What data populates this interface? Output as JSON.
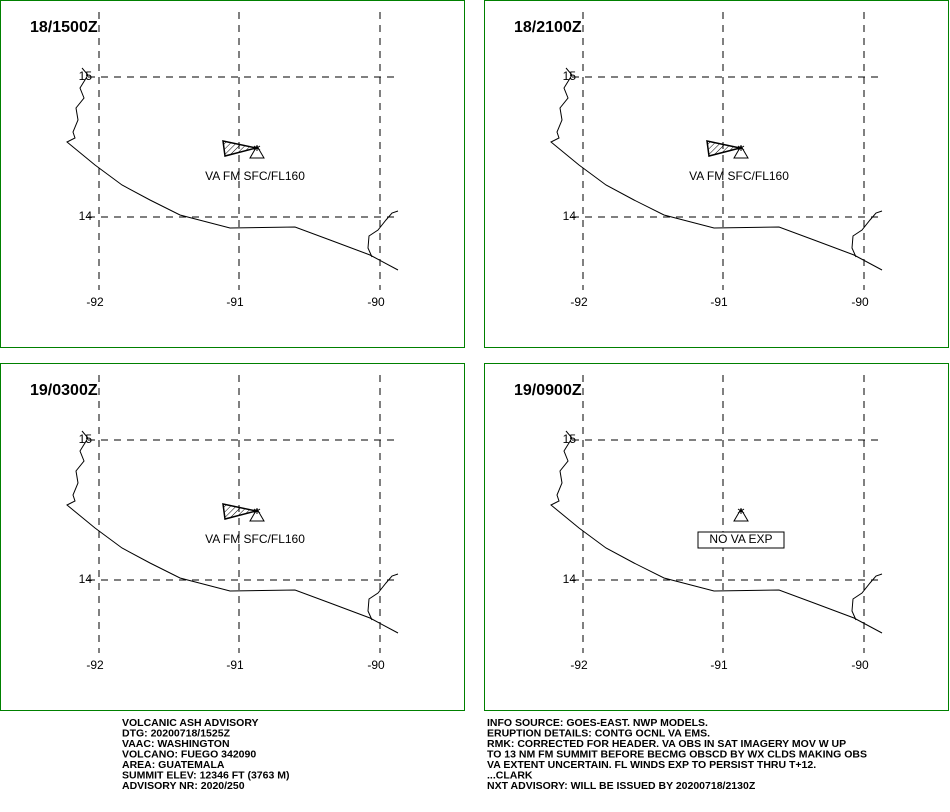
{
  "panels": [
    {
      "time": "18/1500Z",
      "annotation": "VA FM SFC/FL160"
    },
    {
      "time": "18/2100Z",
      "annotation": "VA FM SFC/FL160"
    },
    {
      "time": "19/0300Z",
      "annotation": "VA FM SFC/FL160"
    },
    {
      "time": "19/0900Z",
      "annotation": "NO VA EXP"
    }
  ],
  "map": {
    "lon_labels": [
      "-92",
      "-91",
      "-90"
    ],
    "lat_labels": [
      "15",
      "14"
    ]
  },
  "footer": {
    "left": [
      "VOLCANIC ASH ADVISORY",
      "DTG: 20200718/1525Z",
      "VAAC: WASHINGTON",
      "VOLCANO: FUEGO 342090",
      "AREA: GUATEMALA",
      "SUMMIT ELEV: 12346 FT (3763 M)",
      "ADVISORY NR: 2020/250"
    ],
    "right": [
      "INFO SOURCE: GOES-EAST. NWP MODELS.",
      "ERUPTION DETAILS: CONTG OCNL VA EMS.",
      "RMK: CORRECTED FOR HEADER. VA OBS IN SAT IMAGERY MOV W UP",
      "TO 13 NM FM SUMMIT BEFORE BECMG OBSCD BY WX CLDS MAKING OBS",
      "VA EXTENT UNCERTAIN. FL WINDS EXP TO PERSIST THRU T+12.",
      "...CLARK",
      "NXT ADVISORY: WILL BE ISSUED BY 20200718/2130Z"
    ]
  }
}
